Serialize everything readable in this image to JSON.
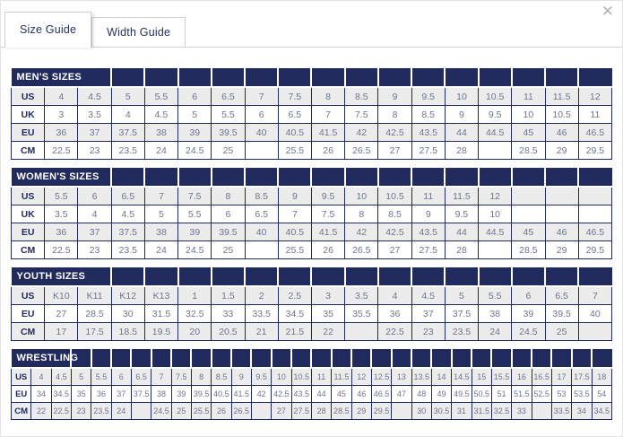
{
  "window": {
    "close_glyph": "✕"
  },
  "tabs": [
    {
      "label": "Size Guide",
      "active": true
    },
    {
      "label": "Width Guide",
      "active": false
    }
  ],
  "colors": {
    "header_navy": "#202a5c",
    "row_shade": "#ececec",
    "value_text": "#6b7590",
    "tab_text": "#263357",
    "tab_border": "#cfcfcf"
  },
  "tables": [
    {
      "title": "MEN'S SIZES",
      "rows": [
        {
          "label": "US",
          "values": [
            "4",
            "4.5",
            "5",
            "5.5",
            "6",
            "6.5",
            "7",
            "7.5",
            "8",
            "8.5",
            "9",
            "9.5",
            "10",
            "10.5",
            "11",
            "11.5",
            "12"
          ]
        },
        {
          "label": "UK",
          "values": [
            "3",
            "3.5",
            "4",
            "4.5",
            "5",
            "5.5",
            "6",
            "6.5",
            "7",
            "7.5",
            "8",
            "8.5",
            "9",
            "9.5",
            "10",
            "10.5",
            "11"
          ]
        },
        {
          "label": "EU",
          "values": [
            "36",
            "37",
            "37.5",
            "38",
            "39",
            "39.5",
            "40",
            "40.5",
            "41.5",
            "42",
            "42.5",
            "43.5",
            "44",
            "44.5",
            "45",
            "46",
            "46.5"
          ]
        },
        {
          "label": "CM",
          "values": [
            "22.5",
            "23",
            "23.5",
            "24",
            "24.5",
            "25",
            "",
            "25.5",
            "26",
            "26.5",
            "27",
            "27.5",
            "28",
            "",
            "28.5",
            "29",
            "29.5"
          ]
        }
      ]
    },
    {
      "title": "WOMEN'S SIZES",
      "rows": [
        {
          "label": "US",
          "values": [
            "5.5",
            "6",
            "6.5",
            "7",
            "7.5",
            "8",
            "8.5",
            "9",
            "9.5",
            "10",
            "10.5",
            "11",
            "11.5",
            "12",
            "",
            "",
            ""
          ]
        },
        {
          "label": "UK",
          "values": [
            "3.5",
            "4",
            "4.5",
            "5",
            "5.5",
            "6",
            "6.5",
            "7",
            "7.5",
            "8",
            "8.5",
            "9",
            "9.5",
            "10",
            "",
            "",
            ""
          ]
        },
        {
          "label": "EU",
          "values": [
            "36",
            "37",
            "37.5",
            "38",
            "39",
            "39.5",
            "40",
            "40.5",
            "41.5",
            "42",
            "42.5",
            "43.5",
            "44",
            "44.5",
            "45",
            "46",
            "46.5"
          ]
        },
        {
          "label": "CM",
          "values": [
            "22.5",
            "23",
            "23.5",
            "24",
            "24.5",
            "25",
            "",
            "25.5",
            "26",
            "26.5",
            "27",
            "27.5",
            "28",
            "",
            "28.5",
            "29",
            "29.5"
          ]
        }
      ]
    },
    {
      "title": "YOUTH SIZES",
      "rows": [
        {
          "label": "US",
          "values": [
            "K10",
            "K11",
            "K12",
            "K13",
            "1",
            "1.5",
            "2",
            "2.5",
            "3",
            "3.5",
            "4",
            "4.5",
            "5",
            "5.5",
            "6",
            "6.5",
            "7"
          ]
        },
        {
          "label": "EU",
          "values": [
            "27",
            "28.5",
            "30",
            "31.5",
            "32.5",
            "33",
            "33.5",
            "34.5",
            "35",
            "35.5",
            "36",
            "37",
            "37.5",
            "38",
            "39",
            "39.5",
            "40"
          ]
        },
        {
          "label": "CM",
          "values": [
            "17",
            "17.5",
            "18.5",
            "19.5",
            "20",
            "20.5",
            "21",
            "21.5",
            "22",
            "",
            "22.5",
            "23",
            "23.5",
            "24",
            "24.5",
            "25",
            ""
          ]
        }
      ]
    },
    {
      "title": "WRESTLING",
      "rows": [
        {
          "label": "US",
          "values": [
            "4",
            "4.5",
            "5",
            "5.5",
            "6",
            "6.5",
            "7",
            "7.5",
            "8",
            "8.5",
            "9",
            "9.5",
            "10",
            "10.5",
            "11",
            "11.5",
            "12",
            "12.5",
            "13",
            "13.5",
            "14",
            "14.5",
            "15",
            "15.5",
            "16",
            "16.5",
            "17",
            "17.5",
            "18"
          ]
        },
        {
          "label": "EU",
          "values": [
            "34",
            "34.5",
            "35",
            "36",
            "37",
            "37.5",
            "38",
            "39",
            "39.5",
            "40.5",
            "41.5",
            "42",
            "42.5",
            "43.5",
            "44",
            "45",
            "46",
            "46.5",
            "47",
            "48",
            "49",
            "49.5",
            "50.5",
            "51",
            "51.5",
            "52.5",
            "53",
            "53.5",
            "54"
          ]
        },
        {
          "label": "CM",
          "values": [
            "22",
            "22.5",
            "23",
            "23.5",
            "24",
            "",
            "24.5",
            "25",
            "25.5",
            "26",
            "26.5",
            "",
            "27",
            "27.5",
            "28",
            "28.5",
            "29",
            "29.5",
            "",
            "30",
            "30.5",
            "31",
            "31.5",
            "32.5",
            "33",
            "",
            "33.5",
            "34",
            "34.5"
          ]
        }
      ]
    }
  ]
}
